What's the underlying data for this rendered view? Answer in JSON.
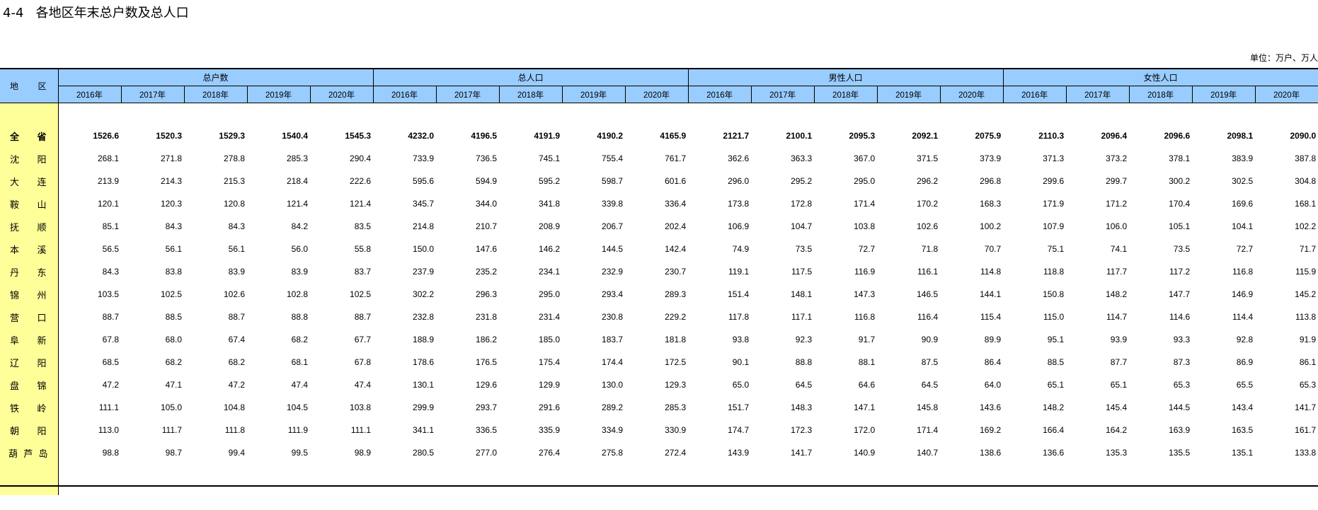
{
  "title": "4-4   各地区年末总户数及总人口",
  "unit": "单位：万户、万人",
  "header": {
    "region": [
      "地",
      "区"
    ],
    "groups": [
      "总户数",
      "总人口",
      "男性人口",
      "女性人口"
    ],
    "years": [
      "2016年",
      "2017年",
      "2018年",
      "2019年",
      "2020年"
    ]
  },
  "rows": [
    {
      "name": [
        "全",
        "省"
      ],
      "values": [
        "1526.6",
        "1520.3",
        "1529.3",
        "1540.4",
        "1545.3",
        "4232.0",
        "4196.5",
        "4191.9",
        "4190.2",
        "4165.9",
        "2121.7",
        "2100.1",
        "2095.3",
        "2092.1",
        "2075.9",
        "2110.3",
        "2096.4",
        "2096.6",
        "2098.1",
        "2090.0"
      ]
    },
    {
      "name": [
        "沈",
        "阳"
      ],
      "values": [
        "268.1",
        "271.8",
        "278.8",
        "285.3",
        "290.4",
        "733.9",
        "736.5",
        "745.1",
        "755.4",
        "761.7",
        "362.6",
        "363.3",
        "367.0",
        "371.5",
        "373.9",
        "371.3",
        "373.2",
        "378.1",
        "383.9",
        "387.8"
      ]
    },
    {
      "name": [
        "大",
        "连"
      ],
      "values": [
        "213.9",
        "214.3",
        "215.3",
        "218.4",
        "222.6",
        "595.6",
        "594.9",
        "595.2",
        "598.7",
        "601.6",
        "296.0",
        "295.2",
        "295.0",
        "296.2",
        "296.8",
        "299.6",
        "299.7",
        "300.2",
        "302.5",
        "304.8"
      ]
    },
    {
      "name": [
        "鞍",
        "山"
      ],
      "values": [
        "120.1",
        "120.3",
        "120.8",
        "121.4",
        "121.4",
        "345.7",
        "344.0",
        "341.8",
        "339.8",
        "336.4",
        "173.8",
        "172.8",
        "171.4",
        "170.2",
        "168.3",
        "171.9",
        "171.2",
        "170.4",
        "169.6",
        "168.1"
      ]
    },
    {
      "name": [
        "抚",
        "顺"
      ],
      "values": [
        "85.1",
        "84.3",
        "84.3",
        "84.2",
        "83.5",
        "214.8",
        "210.7",
        "208.9",
        "206.7",
        "202.4",
        "106.9",
        "104.7",
        "103.8",
        "102.6",
        "100.2",
        "107.9",
        "106.0",
        "105.1",
        "104.1",
        "102.2"
      ]
    },
    {
      "name": [
        "本",
        "溪"
      ],
      "values": [
        "56.5",
        "56.1",
        "56.1",
        "56.0",
        "55.8",
        "150.0",
        "147.6",
        "146.2",
        "144.5",
        "142.4",
        "74.9",
        "73.5",
        "72.7",
        "71.8",
        "70.7",
        "75.1",
        "74.1",
        "73.5",
        "72.7",
        "71.7"
      ]
    },
    {
      "name": [
        "丹",
        "东"
      ],
      "values": [
        "84.3",
        "83.8",
        "83.9",
        "83.9",
        "83.7",
        "237.9",
        "235.2",
        "234.1",
        "232.9",
        "230.7",
        "119.1",
        "117.5",
        "116.9",
        "116.1",
        "114.8",
        "118.8",
        "117.7",
        "117.2",
        "116.8",
        "115.9"
      ]
    },
    {
      "name": [
        "锦",
        "州"
      ],
      "values": [
        "103.5",
        "102.5",
        "102.6",
        "102.8",
        "102.5",
        "302.2",
        "296.3",
        "295.0",
        "293.4",
        "289.3",
        "151.4",
        "148.1",
        "147.3",
        "146.5",
        "144.1",
        "150.8",
        "148.2",
        "147.7",
        "146.9",
        "145.2"
      ]
    },
    {
      "name": [
        "营",
        "口"
      ],
      "values": [
        "88.7",
        "88.5",
        "88.7",
        "88.8",
        "88.7",
        "232.8",
        "231.8",
        "231.4",
        "230.8",
        "229.2",
        "117.8",
        "117.1",
        "116.8",
        "116.4",
        "115.4",
        "115.0",
        "114.7",
        "114.6",
        "114.4",
        "113.8"
      ]
    },
    {
      "name": [
        "阜",
        "新"
      ],
      "values": [
        "67.8",
        "68.0",
        "67.4",
        "68.2",
        "67.7",
        "188.9",
        "186.2",
        "185.0",
        "183.7",
        "181.8",
        "93.8",
        "92.3",
        "91.7",
        "90.9",
        "89.9",
        "95.1",
        "93.9",
        "93.3",
        "92.8",
        "91.9"
      ]
    },
    {
      "name": [
        "辽",
        "阳"
      ],
      "values": [
        "68.5",
        "68.2",
        "68.2",
        "68.1",
        "67.8",
        "178.6",
        "176.5",
        "175.4",
        "174.4",
        "172.5",
        "90.1",
        "88.8",
        "88.1",
        "87.5",
        "86.4",
        "88.5",
        "87.7",
        "87.3",
        "86.9",
        "86.1"
      ]
    },
    {
      "name": [
        "盘",
        "锦"
      ],
      "values": [
        "47.2",
        "47.1",
        "47.2",
        "47.4",
        "47.4",
        "130.1",
        "129.6",
        "129.9",
        "130.0",
        "129.3",
        "65.0",
        "64.5",
        "64.6",
        "64.5",
        "64.0",
        "65.1",
        "65.1",
        "65.3",
        "65.5",
        "65.3"
      ]
    },
    {
      "name": [
        "铁",
        "岭"
      ],
      "values": [
        "111.1",
        "105.0",
        "104.8",
        "104.5",
        "103.8",
        "299.9",
        "293.7",
        "291.6",
        "289.2",
        "285.3",
        "151.7",
        "148.3",
        "147.1",
        "145.8",
        "143.6",
        "148.2",
        "145.4",
        "144.5",
        "143.4",
        "141.7"
      ]
    },
    {
      "name": [
        "朝",
        "阳"
      ],
      "values": [
        "113.0",
        "111.7",
        "111.8",
        "111.9",
        "111.1",
        "341.1",
        "336.5",
        "335.9",
        "334.9",
        "330.9",
        "174.7",
        "172.3",
        "172.0",
        "171.4",
        "169.2",
        "166.4",
        "164.2",
        "163.9",
        "163.5",
        "161.7"
      ]
    },
    {
      "name": [
        "葫",
        "芦",
        "岛"
      ],
      "values": [
        "98.8",
        "98.7",
        "99.4",
        "99.5",
        "98.9",
        "280.5",
        "277.0",
        "276.4",
        "275.8",
        "272.4",
        "143.9",
        "141.7",
        "140.9",
        "140.7",
        "138.6",
        "136.6",
        "135.3",
        "135.5",
        "135.1",
        "133.8"
      ]
    }
  ]
}
